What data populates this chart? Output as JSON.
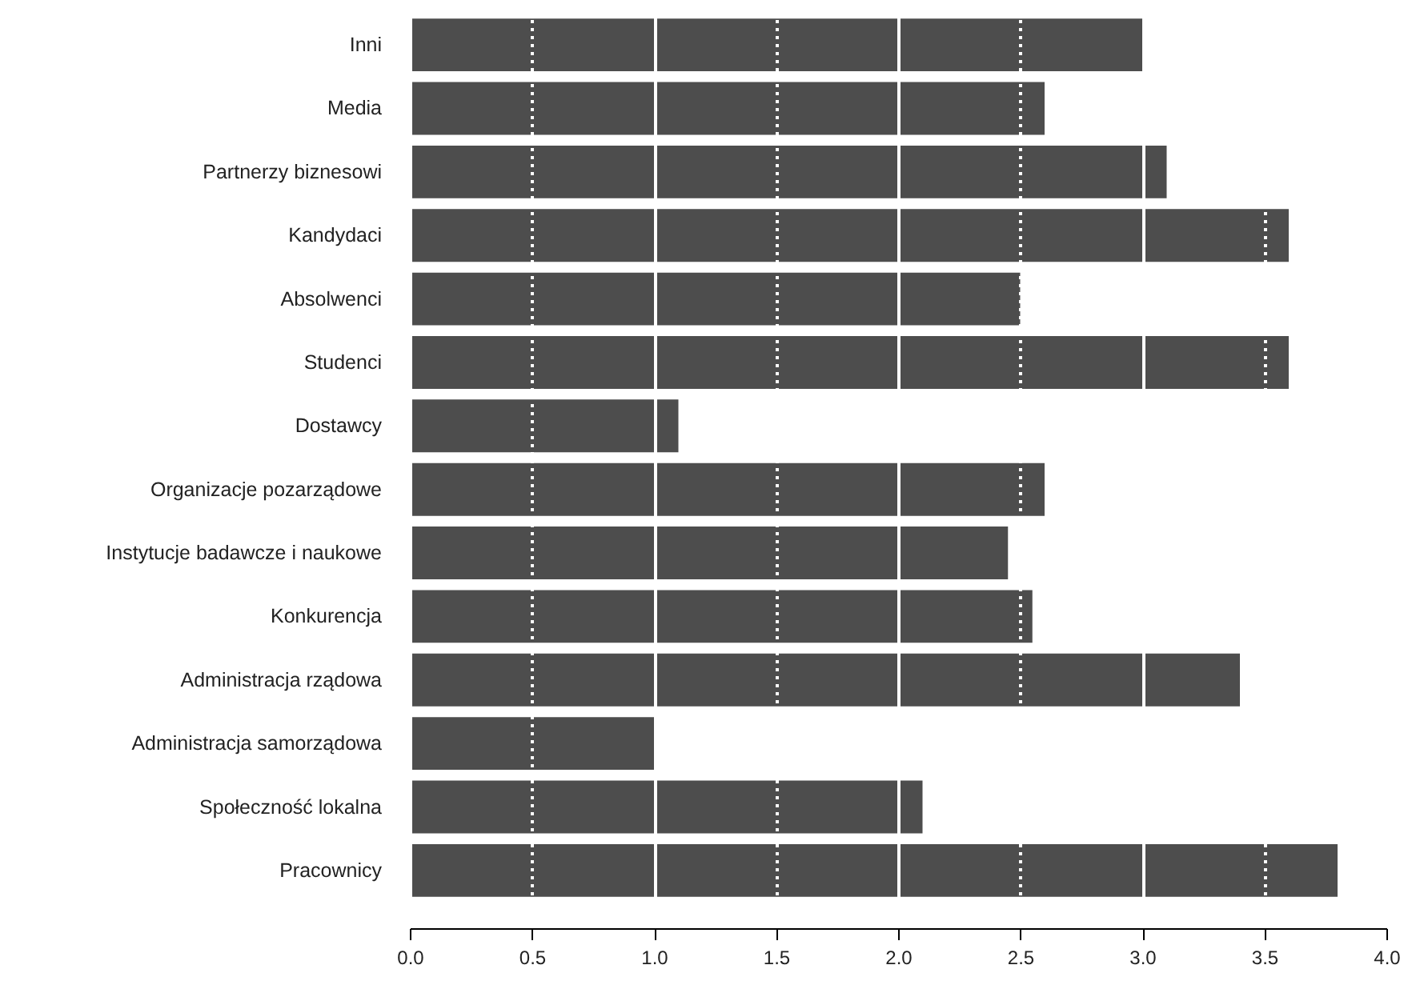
{
  "chart_data": {
    "type": "bar",
    "orientation": "horizontal",
    "categories": [
      "Inni",
      "Media",
      "Partnerzy biznesowi",
      "Kandydaci",
      "Absolwenci",
      "Studenci",
      "Dostawcy",
      "Organizacje pozarządowe",
      "Instytucje badawcze i naukowe",
      "Konkurencja",
      "Administracja rządowa",
      "Administracja samorządowa",
      "Społeczność lokalna",
      "Pracownicy"
    ],
    "values": [
      3.0,
      2.6,
      3.1,
      3.6,
      2.5,
      3.6,
      1.1,
      2.6,
      2.45,
      2.55,
      3.4,
      1.0,
      2.1,
      3.8
    ],
    "color": "#4d4d4d",
    "xlim": [
      0,
      4
    ],
    "xticks": [
      {
        "value": 0,
        "label": "0.0"
      },
      {
        "value": 0.5,
        "label": "0.5"
      },
      {
        "value": 1,
        "label": "1.0"
      },
      {
        "value": 1.5,
        "label": "1.5"
      },
      {
        "value": 2,
        "label": "2.0"
      },
      {
        "value": 2.5,
        "label": "2.5"
      },
      {
        "value": 3,
        "label": "3.0"
      },
      {
        "value": 3.5,
        "label": "3.5"
      },
      {
        "value": 4,
        "label": "4.0"
      }
    ],
    "grid": "x"
  }
}
